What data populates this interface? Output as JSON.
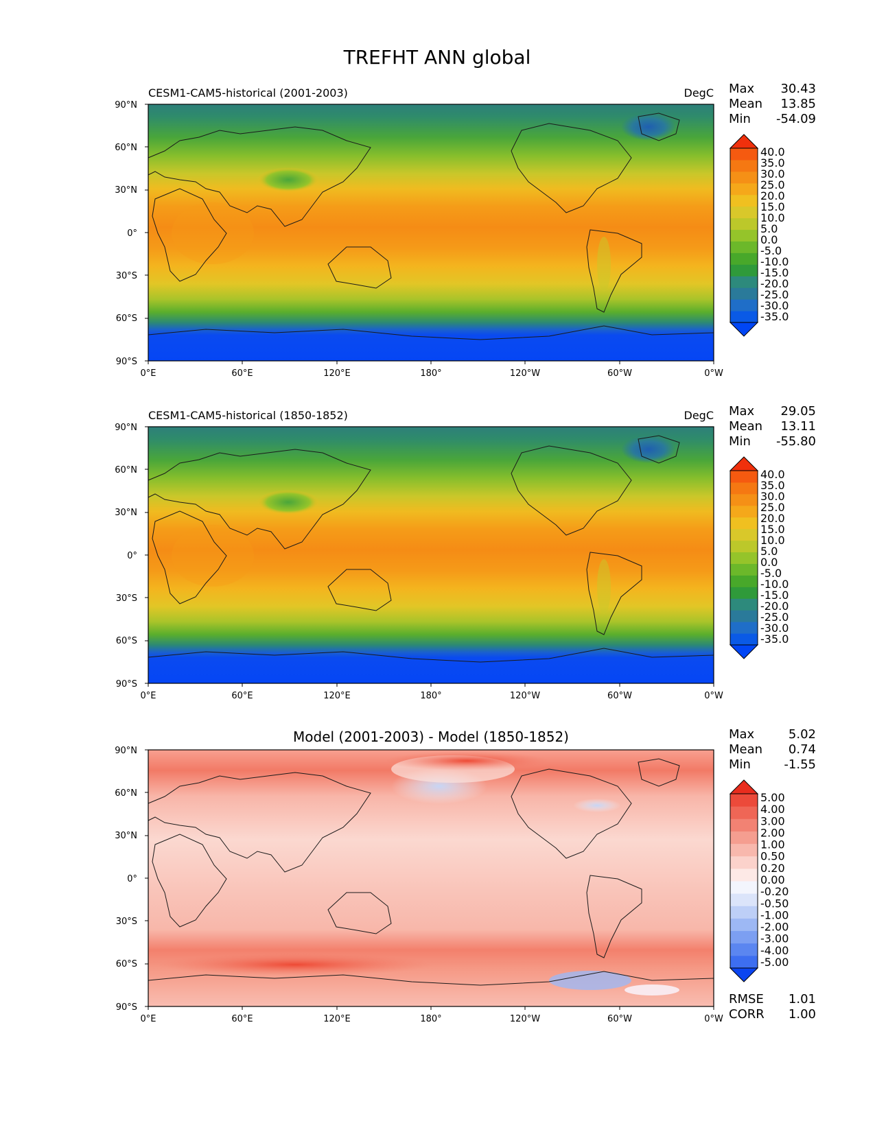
{
  "figure": {
    "title": "TREFHT ANN global",
    "xtick_labels": [
      "0°E",
      "60°E",
      "120°E",
      "180°",
      "120°W",
      "60°W",
      "0°W"
    ],
    "ytick_labels": [
      "90°N",
      "60°N",
      "30°N",
      "0°",
      "30°S",
      "60°S",
      "90°S"
    ],
    "stat_labels": {
      "max": "Max",
      "mean": "Mean",
      "min": "Min",
      "rmse": "RMSE",
      "corr": "CORR"
    }
  },
  "panels": [
    {
      "id": "test",
      "title_left": "CESM1-CAM5-historical (2001-2003)",
      "title_right": "DegC",
      "stats": {
        "max": "30.43",
        "mean": "13.85",
        "min": "-54.09"
      },
      "colorbar_labels": [
        "40.0",
        "35.0",
        "30.0",
        "25.0",
        "20.0",
        "15.0",
        "10.0",
        "5.0",
        "0.0",
        "-5.0",
        "-10.0",
        "-15.0",
        "-20.0",
        "-25.0",
        "-30.0",
        "-35.0"
      ],
      "colorbar_colors": [
        "#0046f5",
        "#0a5ae6",
        "#1f6ec8",
        "#2a7a9a",
        "#2d8a7c",
        "#2f9a3a",
        "#48a82a",
        "#6cb82a",
        "#95c42a",
        "#bcc82a",
        "#d9c82a",
        "#f0c020",
        "#f5a81a",
        "#f59016",
        "#f57812",
        "#f55a10",
        "#f0300c"
      ]
    },
    {
      "id": "ref",
      "title_left": "CESM1-CAM5-historical (1850-1852)",
      "title_right": "DegC",
      "stats": {
        "max": "29.05",
        "mean": "13.11",
        "min": "-55.80"
      },
      "colorbar_labels": [
        "40.0",
        "35.0",
        "30.0",
        "25.0",
        "20.0",
        "15.0",
        "10.0",
        "5.0",
        "0.0",
        "-5.0",
        "-10.0",
        "-15.0",
        "-20.0",
        "-25.0",
        "-30.0",
        "-35.0"
      ],
      "colorbar_colors": [
        "#0046f5",
        "#0a5ae6",
        "#1f6ec8",
        "#2a7a9a",
        "#2d8a7c",
        "#2f9a3a",
        "#48a82a",
        "#6cb82a",
        "#95c42a",
        "#bcc82a",
        "#d9c82a",
        "#f0c020",
        "#f5a81a",
        "#f59016",
        "#f57812",
        "#f55a10",
        "#f0300c"
      ]
    },
    {
      "id": "diff",
      "title_center": "Model (2001-2003) - Model (1850-1852)",
      "stats": {
        "max": "5.02",
        "mean": "0.74",
        "min": "-1.55",
        "rmse": "1.01",
        "corr": "1.00"
      },
      "colorbar_labels": [
        "5.00",
        "4.00",
        "3.00",
        "2.00",
        "1.00",
        "0.50",
        "0.20",
        "0.00",
        "-0.20",
        "-0.50",
        "-1.00",
        "-2.00",
        "-3.00",
        "-4.00",
        "-5.00"
      ],
      "colorbar_colors": [
        "#0b45f0",
        "#3d6ef0",
        "#5b86f0",
        "#7c9ff2",
        "#9db8f4",
        "#bdcff7",
        "#dbe4fa",
        "#f3f5fd",
        "#fde9e6",
        "#fbd2cb",
        "#f8b8ad",
        "#f59e90",
        "#f28273",
        "#ef6656",
        "#ec4a3a",
        "#e92d1e"
      ]
    }
  ]
}
